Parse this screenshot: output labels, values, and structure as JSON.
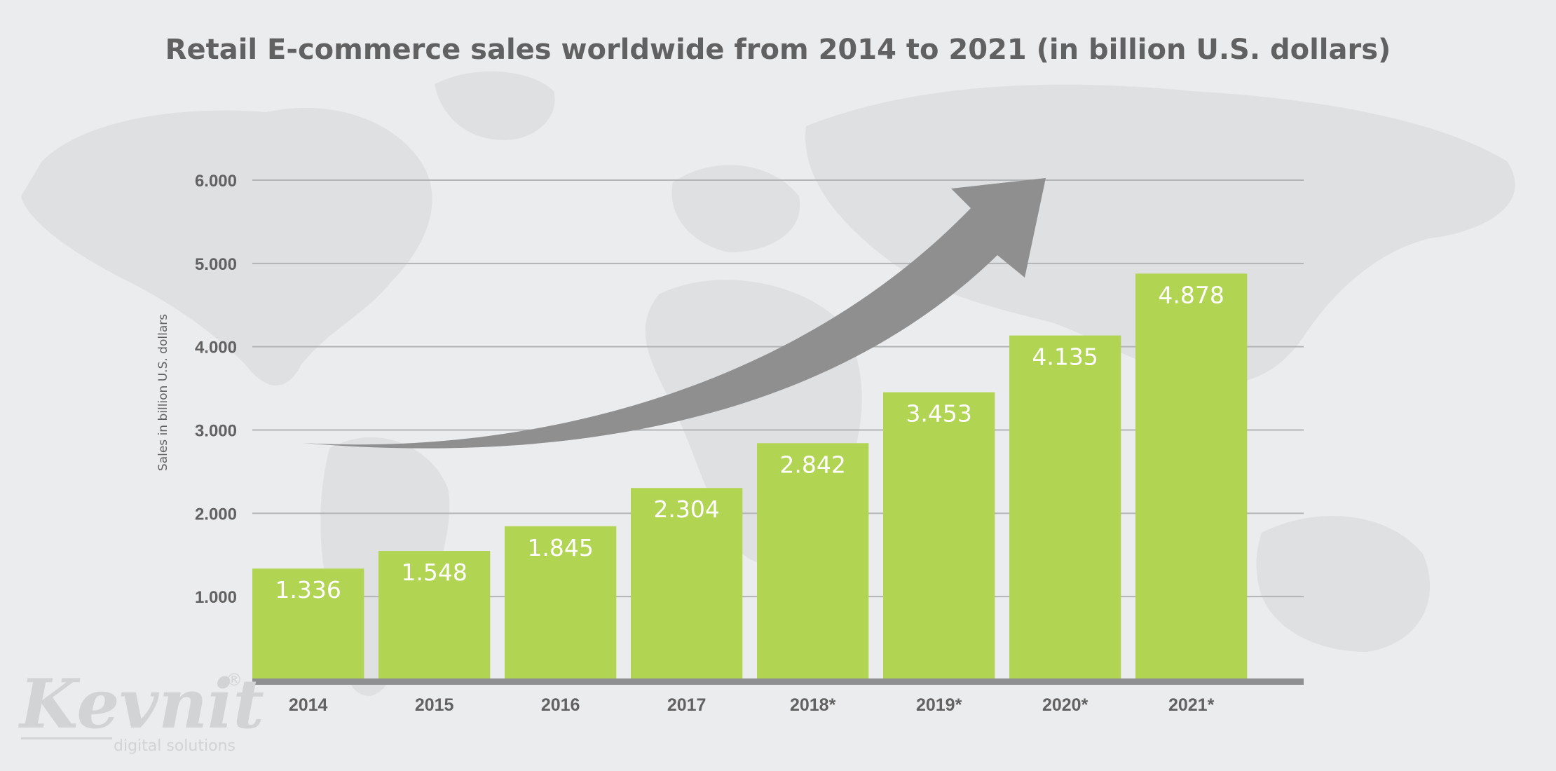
{
  "chart_data": {
    "type": "bar",
    "title": "Retail E-commerce sales worldwide from 2014 to 2021 (in billion U.S. dollars)",
    "xlabel": "",
    "ylabel": "Sales in billion U.S. dollars",
    "categories": [
      "2014",
      "2015",
      "2016",
      "2017",
      "2018*",
      "2019*",
      "2020*",
      "2021*"
    ],
    "values": [
      1336,
      1548,
      1845,
      2304,
      2842,
      3453,
      4135,
      4878
    ],
    "value_labels": [
      "1.336",
      "1.548",
      "1.845",
      "2.304",
      "2.842",
      "3.453",
      "4.135",
      "4.878"
    ],
    "yticks": [
      1000,
      2000,
      3000,
      4000,
      5000,
      6000
    ],
    "ytick_labels": [
      "1.000",
      "2.000",
      "3.000",
      "4.000",
      "5.000",
      "6.000"
    ],
    "ylim": [
      0,
      6000
    ],
    "grid": true,
    "legend": "none",
    "colors": {
      "bar": "#b2d453",
      "grid": "#b3b4b6",
      "axis": "#8f9092",
      "arrow": "#8f8f8f",
      "text": "#616161",
      "value_label": "#ffffff",
      "background": "#ebecee",
      "map": "#dcdddf",
      "logo": "#d2d3d5"
    },
    "decorations": [
      "trend-arrow-icon",
      "world-map-background"
    ]
  },
  "watermark": {
    "logo_text": "Kevnit",
    "tagline": "digital solutions",
    "registered_mark": "®"
  }
}
